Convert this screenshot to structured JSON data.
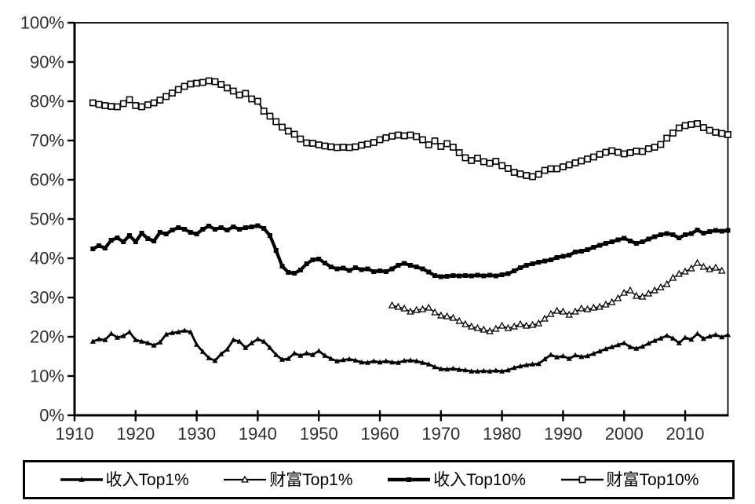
{
  "chart_data": {
    "type": "line",
    "title": "",
    "background": "#ffffff",
    "line_color": "#000000",
    "grid": false,
    "legend_position": "bottom",
    "x_axis": {
      "tick_labels": [
        "1910",
        "1920",
        "1930",
        "1940",
        "1950",
        "1960",
        "1970",
        "1980",
        "1990",
        "2000",
        "2010"
      ],
      "tick_years": [
        1910,
        1920,
        1930,
        1940,
        1950,
        1960,
        1970,
        1980,
        1990,
        2000,
        2010
      ],
      "min": 1910,
      "max": 2017
    },
    "y_axis": {
      "tick_labels": [
        "0%",
        "10%",
        "20%",
        "30%",
        "40%",
        "50%",
        "60%",
        "70%",
        "80%",
        "90%",
        "100%"
      ],
      "min": 0,
      "max": 100,
      "unit": "%"
    },
    "series": [
      {
        "key": "income-top1",
        "label": "收入Top1%",
        "marker": "filled-triangle",
        "start_year": 1913,
        "values": [
          18.8,
          19.4,
          19.2,
          20.8,
          19.8,
          20.2,
          21.2,
          19.2,
          18.8,
          18.4,
          17.8,
          18.6,
          20.6,
          21.0,
          21.2,
          21.6,
          21.2,
          18.0,
          16.2,
          14.6,
          13.9,
          15.6,
          16.8,
          19.2,
          18.8,
          17.2,
          18.4,
          19.4,
          18.8,
          17.2,
          15.4,
          14.2,
          14.4,
          15.8,
          15.2,
          15.8,
          15.4,
          16.4,
          15.2,
          14.4,
          13.8,
          14.1,
          14.3,
          14.0,
          13.5,
          13.4,
          13.8,
          13.5,
          13.8,
          13.5,
          13.4,
          13.9,
          14.0,
          13.8,
          13.4,
          13.0,
          12.3,
          11.8,
          11.7,
          11.9,
          11.6,
          11.5,
          11.2,
          11.2,
          11.3,
          11.2,
          11.4,
          11.2,
          11.5,
          12.1,
          12.5,
          12.8,
          13.0,
          13.1,
          14.3,
          15.4,
          14.8,
          15.1,
          14.4,
          15.3,
          14.9,
          15.1,
          15.7,
          16.3,
          16.9,
          17.4,
          17.9,
          18.4,
          17.4,
          17.0,
          17.5,
          18.3,
          19.0,
          19.6,
          20.3,
          19.6,
          18.4,
          19.8,
          19.3,
          20.8,
          19.5,
          20.1,
          20.5,
          19.9,
          20.5
        ]
      },
      {
        "key": "wealth-top1",
        "label": "财富Top1%",
        "marker": "open-triangle",
        "start_year": 1962,
        "values": [
          28.0,
          27.6,
          27.2,
          26.4,
          26.8,
          27.0,
          27.4,
          26.2,
          25.4,
          25.2,
          24.8,
          24.0,
          23.2,
          22.6,
          22.2,
          21.8,
          21.4,
          22.0,
          22.8,
          22.2,
          22.6,
          23.2,
          22.8,
          23.0,
          23.4,
          24.6,
          25.8,
          26.6,
          26.4,
          25.6,
          26.4,
          27.2,
          27.0,
          27.4,
          27.6,
          28.2,
          28.8,
          29.8,
          31.2,
          31.8,
          30.4,
          30.2,
          31.0,
          31.8,
          32.6,
          33.4,
          35.0,
          36.0,
          36.6,
          37.4,
          38.8,
          37.8,
          37.2,
          37.6,
          36.8
        ]
      },
      {
        "key": "income-top10",
        "label": "收入Top10%",
        "marker": "filled-square",
        "start_year": 1913,
        "values": [
          42.4,
          43.2,
          42.6,
          44.6,
          45.2,
          44.2,
          45.8,
          44.2,
          46.4,
          45.0,
          44.4,
          46.6,
          46.2,
          47.2,
          47.8,
          47.4,
          46.6,
          46.2,
          47.4,
          48.2,
          47.4,
          47.8,
          47.2,
          48.0,
          47.4,
          47.8,
          48.0,
          48.3,
          47.6,
          45.8,
          42.0,
          38.0,
          36.4,
          36.2,
          37.0,
          38.6,
          39.6,
          39.8,
          38.8,
          37.8,
          37.3,
          37.5,
          36.9,
          37.6,
          37.1,
          37.3,
          36.6,
          36.8,
          36.6,
          37.3,
          38.2,
          38.7,
          38.2,
          37.8,
          37.3,
          36.5,
          35.6,
          35.3,
          35.4,
          35.6,
          35.5,
          35.6,
          35.5,
          35.7,
          35.5,
          35.7,
          35.5,
          35.8,
          36.1,
          36.8,
          37.6,
          38.2,
          38.6,
          39.0,
          39.3,
          39.6,
          40.2,
          40.5,
          40.8,
          41.6,
          41.8,
          42.2,
          42.8,
          43.3,
          43.8,
          44.2,
          44.7,
          45.1,
          44.4,
          43.8,
          44.2,
          44.9,
          45.5,
          46.0,
          46.3,
          46.0,
          45.2,
          46.0,
          46.3,
          47.2,
          46.4,
          46.8,
          47.1,
          46.9,
          47.1
        ]
      },
      {
        "key": "wealth-top10",
        "label": "财富Top10%",
        "marker": "open-square",
        "start_year": 1913,
        "values": [
          79.6,
          79.2,
          78.9,
          78.7,
          78.6,
          79.4,
          80.4,
          78.9,
          78.6,
          79.1,
          79.6,
          80.3,
          81.2,
          82.1,
          83.0,
          83.8,
          84.4,
          84.6,
          84.8,
          85.2,
          85.0,
          84.3,
          83.4,
          82.6,
          81.6,
          82.0,
          80.6,
          80.0,
          77.5,
          76.2,
          74.8,
          73.4,
          72.4,
          71.6,
          70.4,
          69.4,
          69.3,
          68.9,
          68.6,
          68.4,
          68.2,
          68.3,
          68.2,
          68.4,
          68.8,
          69.1,
          69.5,
          70.2,
          70.7,
          71.1,
          71.4,
          71.2,
          71.4,
          71.0,
          70.2,
          68.9,
          69.9,
          68.5,
          69.2,
          68.3,
          66.9,
          65.6,
          64.9,
          65.5,
          64.6,
          64.2,
          64.7,
          63.6,
          62.9,
          61.9,
          61.5,
          61.1,
          60.8,
          61.4,
          62.4,
          62.8,
          62.8,
          63.3,
          63.8,
          64.3,
          64.8,
          65.3,
          65.8,
          66.5,
          67.0,
          67.4,
          67.0,
          66.6,
          66.9,
          67.3,
          67.2,
          67.9,
          68.3,
          69.0,
          70.6,
          71.9,
          73.2,
          73.8,
          74.1,
          74.3,
          73.3,
          72.6,
          72.1,
          71.8,
          71.5
        ]
      }
    ]
  },
  "legend": {
    "items": [
      {
        "label": "收入Top1%"
      },
      {
        "label": "财富Top1%"
      },
      {
        "label": "收入Top10%"
      },
      {
        "label": "财富Top10%"
      }
    ]
  }
}
